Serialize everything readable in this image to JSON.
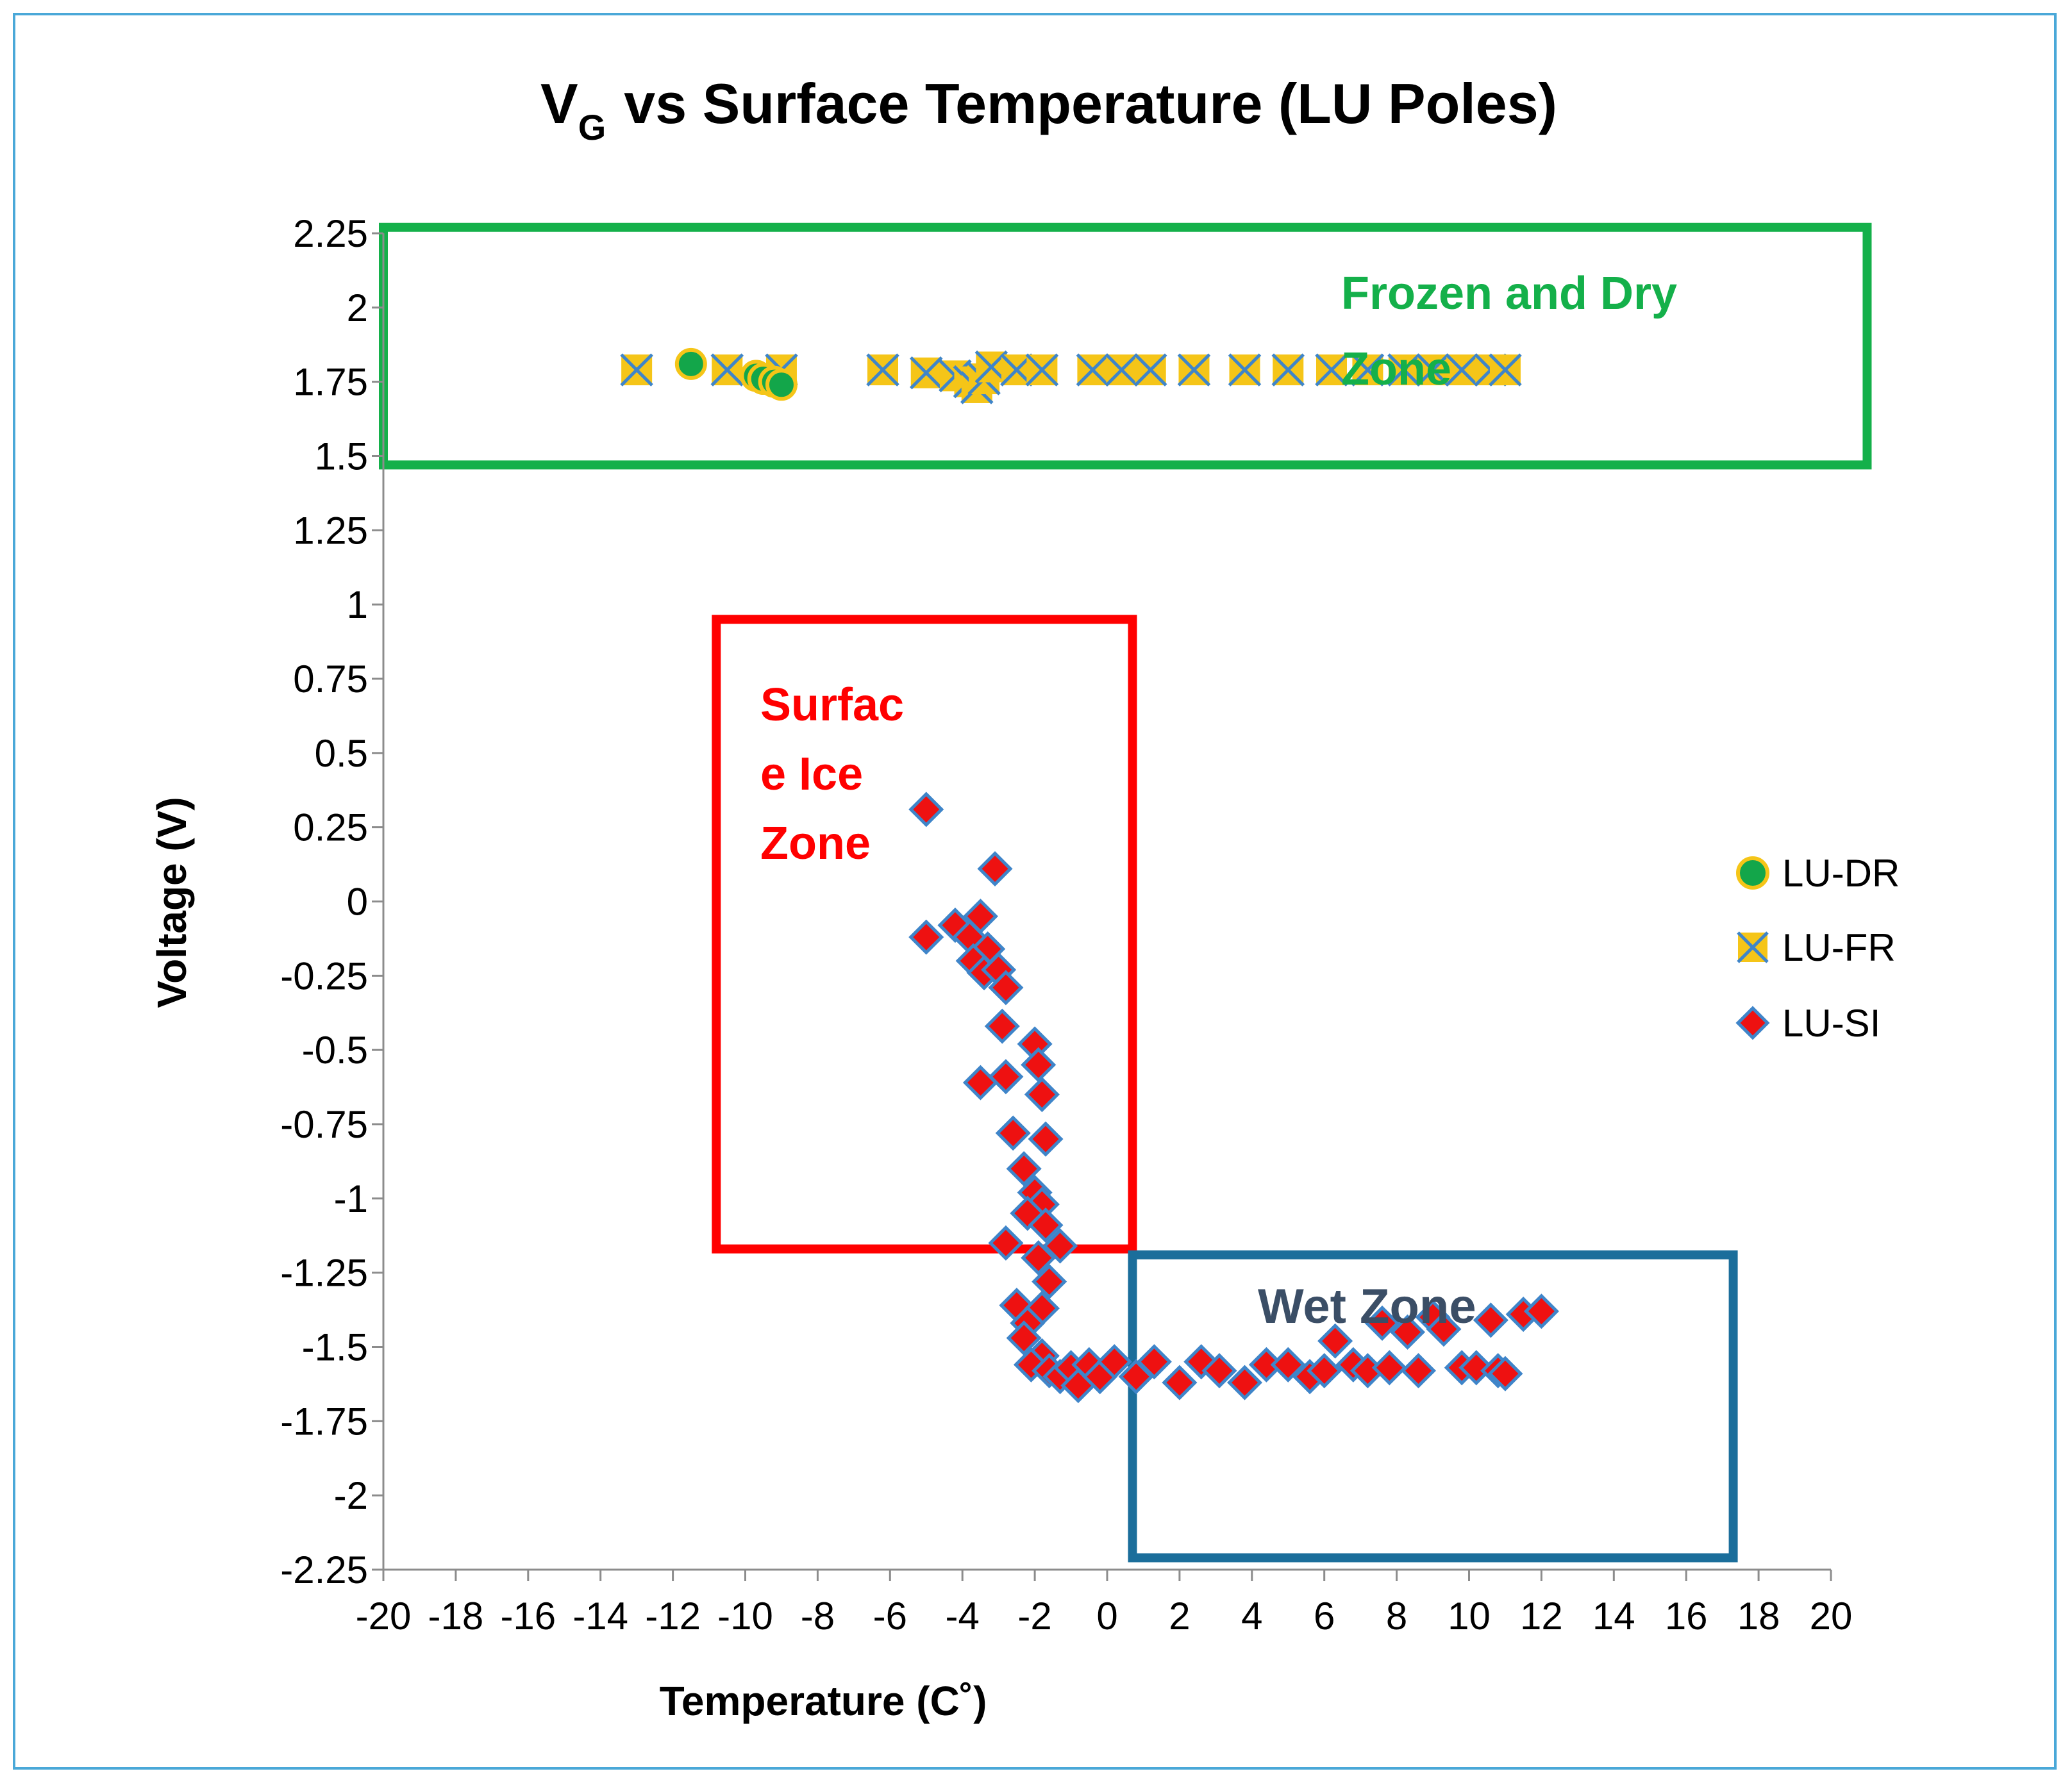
{
  "chart_data": {
    "type": "scatter",
    "title": "vs Surface Temperature (LU Poles)",
    "title_symbol": "V",
    "title_subscript": "G",
    "xlabel": "Temperature (C˚)",
    "ylabel": "Voltage (V)",
    "xlim": [
      -20,
      20
    ],
    "ylim": [
      -2.25,
      2.25
    ],
    "x_ticks": [
      -20,
      -18,
      -16,
      -14,
      -12,
      -10,
      -8,
      -6,
      -4,
      -2,
      0,
      2,
      4,
      6,
      8,
      10,
      12,
      14,
      16,
      18,
      20
    ],
    "y_ticks": [
      2.25,
      2,
      1.75,
      1.5,
      1.25,
      1,
      0.75,
      0.5,
      0.25,
      0,
      -0.25,
      -0.5,
      -0.75,
      -1,
      -1.25,
      -1.5,
      -1.75,
      -2,
      -2.25
    ],
    "grid": false,
    "legend_position": "right",
    "series": [
      {
        "name": "LU-DR",
        "marker": "circle",
        "color": "#13a64a",
        "edge_color": "#f5c518",
        "points": [
          [
            -11.5,
            1.81
          ],
          [
            -9.7,
            1.77
          ],
          [
            -9.5,
            1.76
          ],
          [
            -9.2,
            1.75
          ],
          [
            -9.0,
            1.74
          ]
        ]
      },
      {
        "name": "LU-FR",
        "marker": "x-box",
        "color": "#f5c518",
        "edge_color": "#3f85c9",
        "points": [
          [
            -13,
            1.79
          ],
          [
            -10.5,
            1.79
          ],
          [
            -9.0,
            1.79
          ],
          [
            -6.2,
            1.79
          ],
          [
            -5.0,
            1.78
          ],
          [
            -4.2,
            1.77
          ],
          [
            -3.8,
            1.75
          ],
          [
            -3.6,
            1.73
          ],
          [
            -3.4,
            1.76
          ],
          [
            -3.2,
            1.8
          ],
          [
            -2.5,
            1.79
          ],
          [
            -1.8,
            1.79
          ],
          [
            -0.4,
            1.79
          ],
          [
            0.4,
            1.79
          ],
          [
            1.2,
            1.79
          ],
          [
            2.4,
            1.79
          ],
          [
            3.8,
            1.79
          ],
          [
            5.0,
            1.79
          ],
          [
            6.2,
            1.79
          ],
          [
            7.2,
            1.79
          ],
          [
            8.2,
            1.79
          ],
          [
            9.0,
            1.79
          ],
          [
            9.8,
            1.79
          ],
          [
            10.6,
            1.79
          ],
          [
            11.0,
            1.79
          ]
        ]
      },
      {
        "name": "LU-SI",
        "marker": "diamond",
        "color": "#ee1111",
        "edge_color": "#3f85c9",
        "points": [
          [
            -5.0,
            0.31
          ],
          [
            -3.1,
            0.11
          ],
          [
            -5.0,
            -0.12
          ],
          [
            -4.2,
            -0.08
          ],
          [
            -3.5,
            -0.05
          ],
          [
            -3.8,
            -0.12
          ],
          [
            -3.3,
            -0.16
          ],
          [
            -3.7,
            -0.2
          ],
          [
            -3.4,
            -0.24
          ],
          [
            -3.0,
            -0.23
          ],
          [
            -2.8,
            -0.29
          ],
          [
            -2.9,
            -0.42
          ],
          [
            -2.0,
            -0.48
          ],
          [
            -1.9,
            -0.55
          ],
          [
            -3.5,
            -0.61
          ],
          [
            -2.8,
            -0.59
          ],
          [
            -1.8,
            -0.65
          ],
          [
            -2.6,
            -0.78
          ],
          [
            -1.7,
            -0.8
          ],
          [
            -2.3,
            -0.9
          ],
          [
            -2.0,
            -0.98
          ],
          [
            -1.8,
            -1.02
          ],
          [
            -2.2,
            -1.05
          ],
          [
            -1.7,
            -1.09
          ],
          [
            -2.8,
            -1.15
          ],
          [
            -1.3,
            -1.16
          ],
          [
            -1.9,
            -1.2
          ],
          [
            -1.6,
            -1.28
          ],
          [
            -2.5,
            -1.36
          ],
          [
            -1.8,
            -1.37
          ],
          [
            -2.2,
            -1.42
          ],
          [
            -2.3,
            -1.47
          ],
          [
            -1.8,
            -1.53
          ],
          [
            -2.1,
            -1.56
          ],
          [
            -1.6,
            -1.58
          ],
          [
            -1.3,
            -1.6
          ],
          [
            -1.0,
            -1.57
          ],
          [
            -0.8,
            -1.63
          ],
          [
            -0.5,
            -1.56
          ],
          [
            -0.2,
            -1.6
          ],
          [
            0.2,
            -1.55
          ],
          [
            0.8,
            -1.6
          ],
          [
            1.3,
            -1.55
          ],
          [
            2.0,
            -1.62
          ],
          [
            2.6,
            -1.55
          ],
          [
            3.1,
            -1.58
          ],
          [
            3.8,
            -1.62
          ],
          [
            4.4,
            -1.56
          ],
          [
            5.0,
            -1.56
          ],
          [
            5.6,
            -1.6
          ],
          [
            6.0,
            -1.58
          ],
          [
            6.3,
            -1.48
          ],
          [
            6.8,
            -1.56
          ],
          [
            7.2,
            -1.58
          ],
          [
            7.6,
            -1.42
          ],
          [
            7.8,
            -1.57
          ],
          [
            8.3,
            -1.45
          ],
          [
            8.6,
            -1.58
          ],
          [
            9.0,
            -1.4
          ],
          [
            9.3,
            -1.44
          ],
          [
            9.8,
            -1.57
          ],
          [
            10.2,
            -1.57
          ],
          [
            10.6,
            -1.41
          ],
          [
            10.8,
            -1.58
          ],
          [
            11.0,
            -1.59
          ],
          [
            11.5,
            -1.39
          ],
          [
            12.0,
            -1.38
          ]
        ]
      }
    ],
    "annotations": [
      {
        "id": "frozen",
        "lines": [
          "Frozen and Dry",
          "Zone"
        ],
        "color": "#14b04a"
      },
      {
        "id": "ice",
        "lines": [
          "Surfac",
          "e Ice",
          "Zone"
        ],
        "color": "#ff0000"
      },
      {
        "id": "wet",
        "lines": [
          "Wet Zone"
        ],
        "color": "#3b4e66"
      }
    ],
    "zones": [
      {
        "id": "frozen",
        "color": "#14b04a",
        "x_range": [
          -20,
          21
        ],
        "y_range": [
          1.47,
          2.27
        ]
      },
      {
        "id": "ice",
        "color": "#ff0000",
        "x_range": [
          -10.8,
          0.7
        ],
        "y_range": [
          -1.17,
          0.95
        ]
      },
      {
        "id": "wet",
        "color": "#1b6e9b",
        "x_range": [
          0.7,
          17.3
        ],
        "y_range": [
          -2.21,
          -1.19
        ]
      }
    ]
  }
}
